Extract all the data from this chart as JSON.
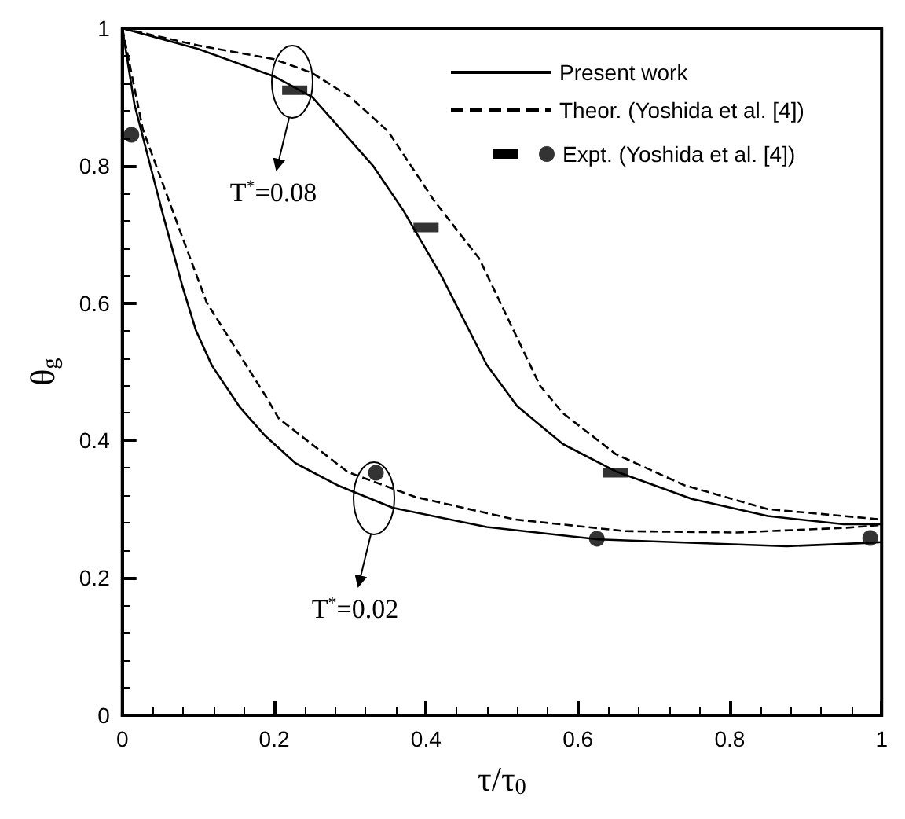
{
  "chart_data": {
    "type": "line",
    "xlabel": "τ/τ$_{0}$",
    "ylabel": "θ$_{g}$",
    "xlim": [
      0,
      1
    ],
    "ylim": [
      0,
      1
    ],
    "xticks": [
      0,
      0.2,
      0.4,
      0.6,
      0.8,
      1
    ],
    "yticks": [
      0,
      0.2,
      0.4,
      0.6,
      0.8,
      1
    ],
    "grid": false,
    "legend": "top right",
    "annotations": [
      "T$^{*}$=0.08",
      "T$^{*}$=0.02"
    ],
    "series": [
      {
        "name": "Present work",
        "color": "#000000",
        "line_style": "solid",
        "marker": "none",
        "x": [
          0,
          0.1,
          0.2,
          0.25,
          0.33,
          0.37,
          0.42,
          0.48,
          0.52,
          0.58,
          0.65,
          0.75,
          0.85,
          0.95,
          1
        ],
        "values": [
          1,
          0.97,
          0.93,
          0.9,
          0.8,
          0.735,
          0.64,
          0.51,
          0.45,
          0.395,
          0.355,
          0.315,
          0.29,
          0.278,
          0.278
        ]
      },
      {
        "color": "#000000",
        "line_style": "solid",
        "marker": "none",
        "x": [
          0,
          0.016,
          0.053,
          0.079,
          0.097,
          0.118,
          0.155,
          0.188,
          0.228,
          0.283,
          0.356,
          0.48,
          0.627,
          0.875,
          0.984,
          1
        ],
        "values": [
          1,
          0.889,
          0.731,
          0.625,
          0.56,
          0.509,
          0.448,
          0.407,
          0.367,
          0.335,
          0.302,
          0.274,
          0.256,
          0.246,
          0.251,
          0.252
        ]
      },
      {
        "name": "Theor. (Yoshida et al. [4])",
        "color": "#000000",
        "line_style": "dashed",
        "marker": "none",
        "x": [
          0,
          0.1,
          0.2,
          0.25,
          0.3,
          0.35,
          0.41,
          0.47,
          0.55,
          0.58,
          0.65,
          0.74,
          0.85,
          1
        ],
        "values": [
          1,
          0.975,
          0.955,
          0.935,
          0.9,
          0.85,
          0.75,
          0.665,
          0.48,
          0.44,
          0.38,
          0.335,
          0.3,
          0.285
        ]
      },
      {
        "color": "#000000",
        "line_style": "dashed",
        "marker": "none",
        "x": [
          0,
          0.027,
          0.078,
          0.111,
          0.188,
          0.206,
          0.297,
          0.385,
          0.517,
          0.663,
          0.81,
          0.955,
          1
        ],
        "values": [
          1,
          0.853,
          0.699,
          0.601,
          0.466,
          0.432,
          0.354,
          0.318,
          0.285,
          0.268,
          0.266,
          0.273,
          0.277
        ]
      },
      {
        "name": "Expt. (Yoshida et al. [4])",
        "type": "scatter",
        "color": "#000000",
        "marker": "circle",
        "x": [
          0.012,
          0.334,
          0.625,
          0.985
        ],
        "values": [
          0.845,
          0.353,
          0.257,
          0.258
        ]
      },
      {
        "type": "scatter",
        "color": "#000000",
        "marker": "square",
        "x": [
          0.227,
          0.4,
          0.65
        ],
        "values": [
          0.91,
          0.71,
          0.353
        ]
      }
    ]
  }
}
